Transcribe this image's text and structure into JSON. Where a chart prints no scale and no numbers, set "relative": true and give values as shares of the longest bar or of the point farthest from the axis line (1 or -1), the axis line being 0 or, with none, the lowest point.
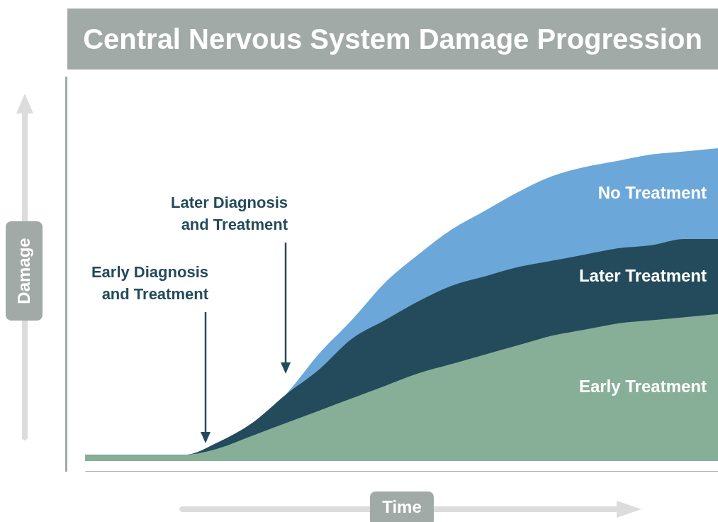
{
  "chart_data": {
    "type": "area",
    "relative": true,
    "title": "Central Nervous System Damage Progression",
    "xlabel": "Time",
    "ylabel": "Damage",
    "categories": [
      null,
      null,
      null,
      null,
      null,
      null,
      null,
      null,
      null,
      null,
      null,
      null,
      null,
      null,
      null,
      null,
      null,
      null,
      null,
      null
    ],
    "series": [
      {
        "name": "No Treatment",
        "color": "#6ca7d9",
        "values": [
          0.02,
          0.02,
          0.02,
          0.02,
          0.06,
          0.12,
          0.21,
          0.34,
          0.45,
          0.57,
          0.66,
          0.74,
          0.8,
          0.86,
          0.91,
          0.94,
          0.96,
          0.98,
          0.99,
          1
        ]
      },
      {
        "name": "Later Treatment",
        "color": "#244b5b",
        "values": [
          0.02,
          0.02,
          0.02,
          0.02,
          0.06,
          0.12,
          0.21,
          0.29,
          0.39,
          0.45,
          0.51,
          0.56,
          0.59,
          0.62,
          0.64,
          0.66,
          0.68,
          0.69,
          0.71,
          0.71
        ]
      },
      {
        "name": "Early Treatment",
        "color": "#87af98",
        "values": [
          0.02,
          0.02,
          0.02,
          0.02,
          0.04,
          0.08,
          0.12,
          0.16,
          0.2,
          0.24,
          0.28,
          0.31,
          0.34,
          0.37,
          0.4,
          0.42,
          0.44,
          0.45,
          0.46,
          0.47
        ]
      }
    ],
    "annotations": [
      "Early Diagnosis\nand Treatment",
      "Later Diagnosis\nand Treatment"
    ]
  }
}
